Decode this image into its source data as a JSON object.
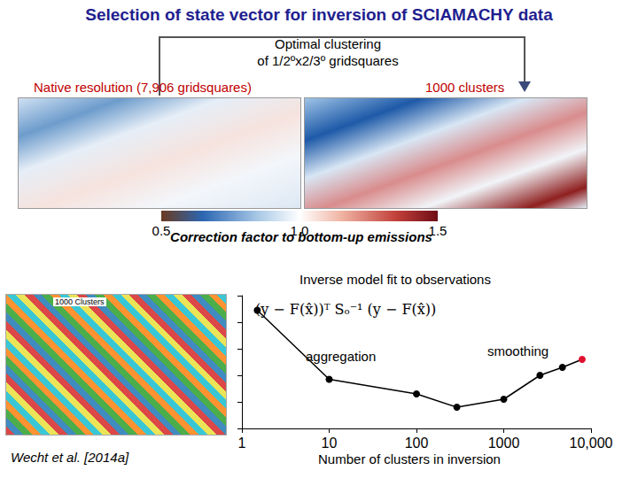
{
  "title": "Selection of state vector for inversion of SCIAMACHY data",
  "clustering_label": [
    "Optimal clustering",
    "of 1/2ºx2/3º gridsquares"
  ],
  "left_map_label": "Native resolution (7,906 gridsquares)",
  "right_map_label": "1000 clusters",
  "colorbar": {
    "label": "Correction factor to bottom-up emissions",
    "range": [
      0.5,
      1.5
    ],
    "ticks": [
      0.5,
      {
        "value": 1,
        "label": "1.0"
      },
      1.5
    ]
  },
  "cluster_map_label": "1000 Clusters",
  "citation": "Wecht et al. [2014a]",
  "chart_data": {
    "type": "line",
    "title": "Inverse model fit to observations",
    "y_label": "(y − F(x̂))ᵀ Sₒ⁻¹ (y − F(x̂))",
    "x_label": "Number of clusters in inversion",
    "annotations": [
      "aggregation",
      "smoothing"
    ],
    "x": [
      1.5,
      10,
      100,
      290,
      1000,
      2600,
      4700,
      7906
    ],
    "values": [
      0.89,
      0.37,
      0.26,
      0.16,
      0.22,
      0.4,
      0.46,
      0.52
    ],
    "color": "#000000",
    "colors": [
      "#000000",
      "#000000",
      "#000000",
      "#000000",
      "#000000",
      "#000000",
      "#000000",
      "#e0102f"
    ],
    "marker": "circle",
    "log": "x",
    "xlim": [
      1,
      10000
    ],
    "xticks": [
      1,
      10,
      100,
      1000,
      {
        "value": 10000,
        "label": "10,000"
      }
    ],
    "ylim": [
      0,
      1
    ],
    "yticks": [
      0,
      0.2,
      0.4,
      0.6,
      0.8,
      1
    ],
    "tick_labels": "x",
    "grid": false
  }
}
